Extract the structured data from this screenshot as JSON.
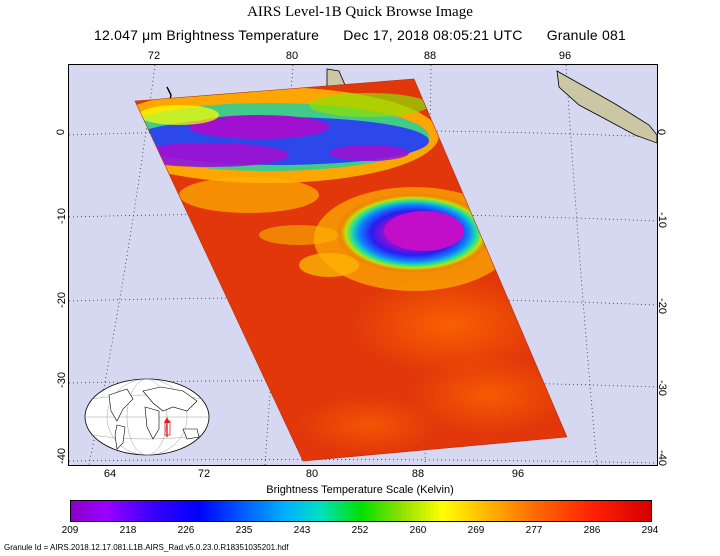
{
  "title": "AIRS Level-1B Quick Browse Image",
  "subtitle": {
    "product": "12.047 μm Brightness Temperature",
    "datetime": "Dec 17, 2018 08:05:21 UTC",
    "granule": "Granule 081"
  },
  "map": {
    "lon_top_labels": [
      "72",
      "80",
      "88",
      "96"
    ],
    "lon_bottom_labels": [
      "64",
      "72",
      "80",
      "88",
      "96"
    ],
    "lat_labels": [
      "0",
      "-10",
      "-20",
      "-30",
      "-40"
    ],
    "background_color": "#d6d8f1",
    "land_color": "#cbc7a4",
    "swath_dominant_color": "#e83a10",
    "storm_core_color": "#c20ec8",
    "inset_marker_color": "#e02020"
  },
  "colorbar": {
    "title": "Brightness Temperature Scale (Kelvin)",
    "ticks": [
      "209",
      "218",
      "226",
      "235",
      "243",
      "252",
      "260",
      "269",
      "277",
      "286",
      "294"
    ]
  },
  "footer": {
    "granule_id": "Granule Id = AIRS.2018.12.17.081.L1B.AIRS_Rad.v5.0.23.0.R18351035201.hdf"
  }
}
